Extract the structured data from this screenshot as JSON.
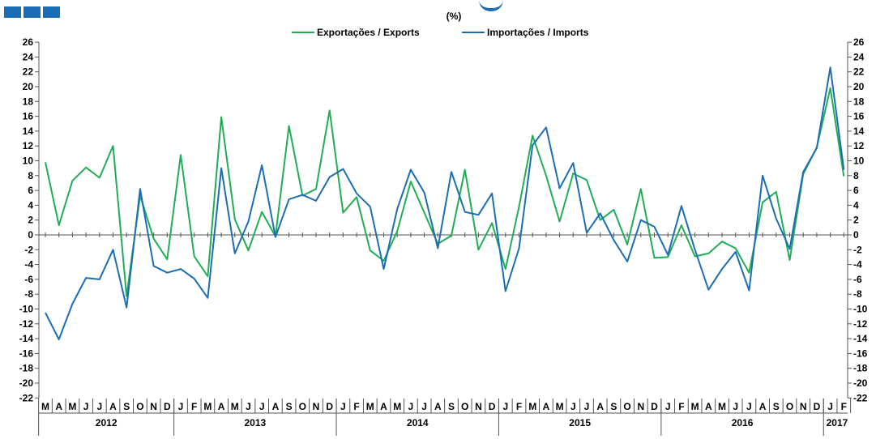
{
  "colors": {
    "exports": "#1fae55",
    "imports": "#1b6db5",
    "axis": "#555555",
    "text": "#000000",
    "brand": "#1b6db5"
  },
  "chart_data": {
    "type": "line",
    "unit_label": "(%)",
    "title": "",
    "xlabel": "",
    "ylabel": "",
    "ylim": [
      -22,
      26
    ],
    "ytick_step": 2,
    "grid": false,
    "legend_position": "top-center",
    "months": [
      "M",
      "A",
      "M",
      "J",
      "J",
      "A",
      "S",
      "O",
      "N",
      "D",
      "J",
      "F",
      "M",
      "A",
      "M",
      "J",
      "J",
      "A",
      "S",
      "O",
      "N",
      "D",
      "J",
      "F",
      "M",
      "A",
      "M",
      "J",
      "J",
      "A",
      "S",
      "O",
      "N",
      "D",
      "J",
      "F",
      "M",
      "A",
      "M",
      "J",
      "J",
      "A",
      "S",
      "O",
      "N",
      "D",
      "J",
      "F",
      "M",
      "A",
      "M",
      "J",
      "J",
      "A",
      "S",
      "O",
      "N",
      "D",
      "J",
      "F"
    ],
    "years": [
      {
        "label": "2012",
        "start": 0,
        "end": 9
      },
      {
        "label": "2013",
        "start": 10,
        "end": 21
      },
      {
        "label": "2014",
        "start": 22,
        "end": 33
      },
      {
        "label": "2015",
        "start": 34,
        "end": 45
      },
      {
        "label": "2016",
        "start": 46,
        "end": 57
      },
      {
        "label": "2017",
        "start": 58,
        "end": 59
      }
    ],
    "series": [
      {
        "name": "Exportações / Exports",
        "color": "#1fae55",
        "values": [
          9.8,
          1.3,
          7.3,
          9.1,
          7.7,
          12.0,
          -8.3,
          5.3,
          -0.5,
          -3.3,
          10.8,
          -2.9,
          -5.6,
          15.9,
          2.1,
          -2.1,
          3.1,
          -0.2,
          14.7,
          5.3,
          6.2,
          16.8,
          3.0,
          5.1,
          -2.1,
          -3.5,
          0.5,
          7.2,
          3.0,
          -1.2,
          -0.1,
          8.8,
          -2.0,
          1.6,
          -4.6,
          3.8,
          13.4,
          8.0,
          1.8,
          8.3,
          7.4,
          2.0,
          3.4,
          -1.3,
          6.2,
          -3.1,
          -3.0,
          1.3,
          -2.9,
          -2.5,
          -0.9,
          -1.8,
          -5.1,
          4.4,
          5.8,
          -3.4,
          8.2,
          11.8,
          19.8,
          7.9
        ]
      },
      {
        "name": "Importações / Imports",
        "color": "#1b6db5",
        "values": [
          -10.5,
          -14.1,
          -9.3,
          -5.8,
          -6.0,
          -2.0,
          -9.8,
          6.2,
          -4.2,
          -5.1,
          -4.6,
          -5.9,
          -8.5,
          9.0,
          -2.5,
          1.8,
          9.4,
          -0.3,
          4.8,
          5.4,
          4.6,
          7.8,
          8.9,
          5.6,
          3.8,
          -4.6,
          3.5,
          8.8,
          5.7,
          -1.8,
          8.5,
          3.1,
          2.7,
          5.6,
          -7.6,
          -1.8,
          12.1,
          14.5,
          6.3,
          9.7,
          0.3,
          2.9,
          -0.7,
          -3.6,
          2.0,
          1.1,
          -2.7,
          3.9,
          -2.0,
          -7.4,
          -4.6,
          -2.3,
          -7.5,
          8.0,
          2.2,
          -1.9,
          8.5,
          11.7,
          22.6,
          8.8
        ]
      }
    ]
  }
}
